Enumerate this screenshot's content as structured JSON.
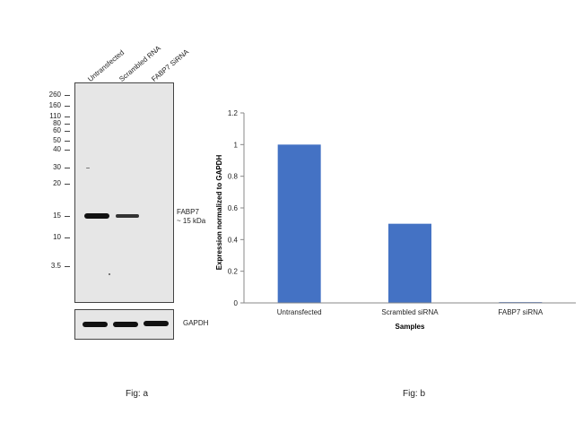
{
  "figure_a": {
    "caption": "Fig: a",
    "lanes": [
      "Untransfected",
      "Scrambled RNA",
      "FABP7 SiRNA"
    ],
    "markers": [
      "260",
      "160",
      "110",
      "80",
      "60",
      "50",
      "40",
      "30",
      "20",
      "15",
      "10",
      "3.5"
    ],
    "band_label_line1": "FABP7",
    "band_label_line2": "~ 15 kDa",
    "loading_label": "GAPDH"
  },
  "chart_data": {
    "type": "bar",
    "categories": [
      "Untransfected",
      "Scrambled siRNA",
      "FABP7 siRNA"
    ],
    "values": [
      1.0,
      0.5,
      0.005
    ],
    "xlabel": "Samples",
    "ylabel": "Expression normalized to GAPDH",
    "ylim": [
      0,
      1.2
    ],
    "yticks": [
      0,
      0.2,
      0.4,
      0.6,
      0.8,
      1,
      1.2
    ],
    "bar_color": "#4472c4",
    "grid": false,
    "caption": "Fig: b"
  }
}
